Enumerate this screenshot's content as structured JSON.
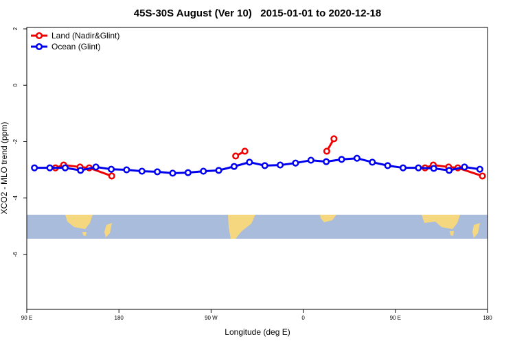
{
  "chart_data": {
    "type": "line",
    "title": "45S-30S August (Ver 10)   2015-01-01 to 2020-12-18",
    "x_label": "Longitude (deg E)",
    "y_label": "XCO2 - MLO trend (ppm)",
    "xlim": [
      90,
      540
    ],
    "xticks": [
      {
        "value": 90,
        "label": "90 E"
      },
      180,
      {
        "value": 270,
        "label": "90 W"
      },
      {
        "value": 360,
        "label": "0"
      },
      {
        "value": 450,
        "label": "90 E"
      },
      {
        "value": 540,
        "label": "180"
      }
    ],
    "ylim": [
      -7.95,
      2.05
    ],
    "yticks": [
      2,
      0,
      -2,
      -4,
      -6
    ],
    "legend": "top-left",
    "series": [
      {
        "name": "Land (Nadir&Glint)",
        "color": "#ee0000",
        "x": [
          118,
          126,
          142,
          151,
          173,
          null,
          294,
          303,
          null,
          383,
          390,
          null,
          479,
          487,
          502,
          511,
          535
        ],
        "values": [
          -2.93,
          -2.83,
          -2.9,
          -2.93,
          -3.22,
          null,
          -2.51,
          -2.34,
          null,
          -2.34,
          -1.9,
          null,
          -2.93,
          -2.83,
          -2.9,
          -2.93,
          -3.22
        ]
      },
      {
        "name": "Ocean (Glint)",
        "color": "#0000ee",
        "x": [
          97.5,
          112.5,
          127.5,
          142.5,
          157.5,
          172.5,
          187.5,
          202.5,
          217.5,
          232.5,
          247.5,
          262.5,
          277.5,
          292.5,
          307.5,
          322.5,
          337.5,
          352.5,
          367.5,
          382.5,
          397.5,
          412.5,
          427.5,
          442.5,
          457.5,
          472.5,
          487.5,
          502.5,
          517.5,
          532.5
        ],
        "values": [
          -2.93,
          -2.93,
          -2.93,
          -3.02,
          -2.9,
          -2.98,
          -3.0,
          -3.05,
          -3.07,
          -3.12,
          -3.1,
          -3.05,
          -3.02,
          -2.88,
          -2.73,
          -2.85,
          -2.83,
          -2.76,
          -2.66,
          -2.71,
          -2.63,
          -2.59,
          -2.73,
          -2.85,
          -2.93,
          -2.93,
          -2.95,
          -3.02,
          -2.9,
          -2.98
        ]
      }
    ]
  }
}
